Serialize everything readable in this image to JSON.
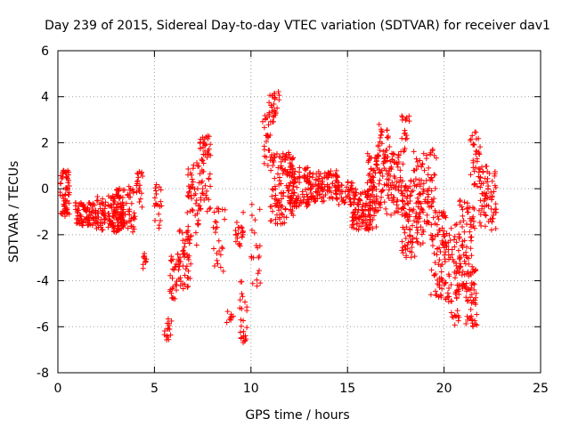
{
  "chart_data": {
    "type": "scatter",
    "title": "Day 239 of 2015, Sidereal Day-to-day VTEC variation (SDTVAR) for receiver dav1",
    "xlabel": "GPS time / hours",
    "ylabel": "SDTVAR / TECUs",
    "xlim": [
      0,
      25
    ],
    "ylim": [
      -8,
      6
    ],
    "xticks": [
      0,
      5,
      10,
      15,
      20,
      25
    ],
    "yticks": [
      -8,
      -6,
      -4,
      -2,
      0,
      2,
      4,
      6
    ],
    "grid": true,
    "marker": "+",
    "color": "#ff0000",
    "clusters": [
      {
        "x": [
          0.1,
          0.6
        ],
        "y": [
          -1.2,
          0.8
        ],
        "n": 60
      },
      {
        "x": [
          0.9,
          2.0
        ],
        "y": [
          -1.6,
          -0.6
        ],
        "n": 90
      },
      {
        "x": [
          2.0,
          3.4
        ],
        "y": [
          -1.9,
          -0.3
        ],
        "n": 130
      },
      {
        "x": [
          3.0,
          4.0
        ],
        "y": [
          -2.0,
          0.1
        ],
        "n": 70
      },
      {
        "x": [
          4.0,
          4.4
        ],
        "y": [
          -0.8,
          0.9
        ],
        "n": 20
      },
      {
        "x": [
          4.4,
          4.6
        ],
        "y": [
          -3.5,
          -2.8
        ],
        "n": 10
      },
      {
        "x": [
          5.0,
          5.4
        ],
        "y": [
          -1.8,
          0.2
        ],
        "n": 20
      },
      {
        "x": [
          5.5,
          5.9
        ],
        "y": [
          -6.6,
          -5.6
        ],
        "n": 15
      },
      {
        "x": [
          5.8,
          6.2
        ],
        "y": [
          -4.8,
          -2.8
        ],
        "n": 25
      },
      {
        "x": [
          6.2,
          6.9
        ],
        "y": [
          -4.4,
          -1.8
        ],
        "n": 50
      },
      {
        "x": [
          6.7,
          7.3
        ],
        "y": [
          -2.6,
          1.2
        ],
        "n": 50
      },
      {
        "x": [
          7.3,
          7.9
        ],
        "y": [
          -1.0,
          2.2
        ],
        "n": 45
      },
      {
        "x": [
          7.5,
          7.9
        ],
        "y": [
          1.4,
          2.3
        ],
        "n": 15
      },
      {
        "x": [
          8.0,
          8.7
        ],
        "y": [
          -3.6,
          -0.8
        ],
        "n": 25
      },
      {
        "x": [
          8.7,
          9.1
        ],
        "y": [
          -5.9,
          -5.2
        ],
        "n": 8
      },
      {
        "x": [
          9.2,
          9.6
        ],
        "y": [
          -2.5,
          -1.0
        ],
        "n": 22
      },
      {
        "x": [
          9.4,
          9.8
        ],
        "y": [
          -6.7,
          -4.0
        ],
        "n": 25
      },
      {
        "x": [
          10.0,
          10.5
        ],
        "y": [
          -4.3,
          -0.5
        ],
        "n": 20
      },
      {
        "x": [
          10.6,
          11.0
        ],
        "y": [
          1.0,
          3.2
        ],
        "n": 25
      },
      {
        "x": [
          10.9,
          11.5
        ],
        "y": [
          2.9,
          4.3
        ],
        "n": 30
      },
      {
        "x": [
          11.0,
          12.2
        ],
        "y": [
          -1.6,
          1.6
        ],
        "n": 120
      },
      {
        "x": [
          12.0,
          13.0
        ],
        "y": [
          -0.8,
          1.0
        ],
        "n": 90
      },
      {
        "x": [
          13.0,
          14.5
        ],
        "y": [
          -0.6,
          0.8
        ],
        "n": 110
      },
      {
        "x": [
          14.5,
          15.3
        ],
        "y": [
          -0.8,
          0.4
        ],
        "n": 40
      },
      {
        "x": [
          15.2,
          16.5
        ],
        "y": [
          -1.8,
          0.0
        ],
        "n": 110
      },
      {
        "x": [
          16.0,
          17.0
        ],
        "y": [
          -1.0,
          1.6
        ],
        "n": 90
      },
      {
        "x": [
          16.5,
          17.2
        ],
        "y": [
          1.2,
          2.8
        ],
        "n": 25
      },
      {
        "x": [
          17.0,
          18.0
        ],
        "y": [
          -1.2,
          1.8
        ],
        "n": 80
      },
      {
        "x": [
          17.8,
          18.2
        ],
        "y": [
          2.0,
          3.2
        ],
        "n": 15
      },
      {
        "x": [
          17.8,
          18.8
        ],
        "y": [
          -3.0,
          0.4
        ],
        "n": 90
      },
      {
        "x": [
          18.4,
          19.6
        ],
        "y": [
          -2.4,
          1.8
        ],
        "n": 90
      },
      {
        "x": [
          19.3,
          20.1
        ],
        "y": [
          -4.8,
          -1.0
        ],
        "n": 70
      },
      {
        "x": [
          20.0,
          20.8
        ],
        "y": [
          -5.6,
          -1.5
        ],
        "n": 70
      },
      {
        "x": [
          20.4,
          20.8
        ],
        "y": [
          -6.1,
          -5.5
        ],
        "n": 8
      },
      {
        "x": [
          20.8,
          21.6
        ],
        "y": [
          -4.5,
          -0.5
        ],
        "n": 80
      },
      {
        "x": [
          21.1,
          21.7
        ],
        "y": [
          -6.0,
          -3.5
        ],
        "n": 40
      },
      {
        "x": [
          21.3,
          21.9
        ],
        "y": [
          0.0,
          2.5
        ],
        "n": 35
      },
      {
        "x": [
          21.8,
          22.7
        ],
        "y": [
          -1.8,
          1.0
        ],
        "n": 70
      }
    ]
  }
}
